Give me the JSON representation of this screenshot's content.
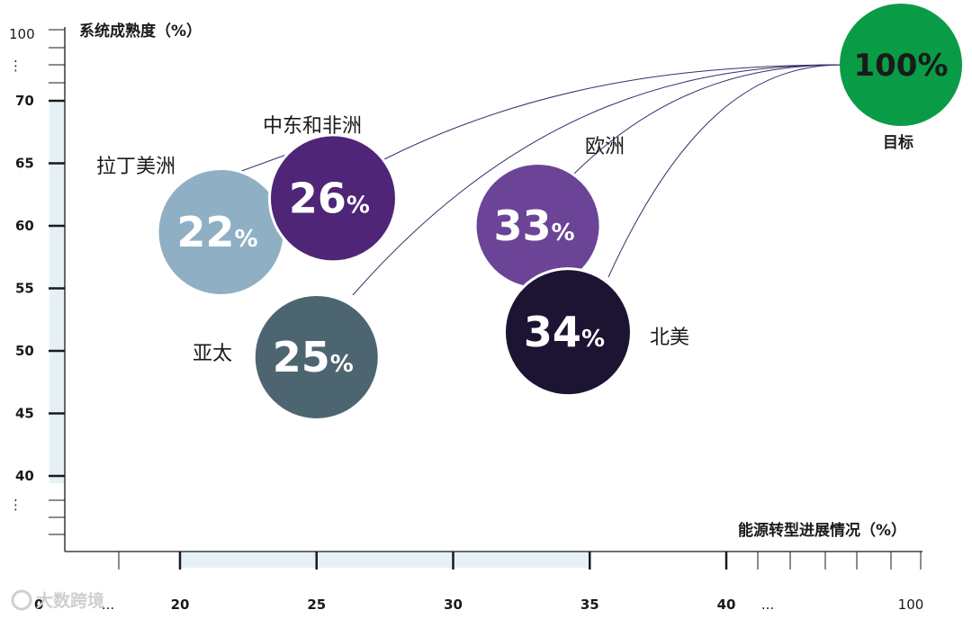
{
  "chart_data": {
    "type": "scatter",
    "title": "",
    "ylabel": "系统成熟度（%）",
    "xlabel": "能源转型进展情况（%）",
    "y_ticks": [
      "100",
      "70",
      "65",
      "60",
      "55",
      "50",
      "45",
      "40"
    ],
    "y_break_marks": [
      "⋮",
      "⋮"
    ],
    "x_ticks": [
      "0",
      "20",
      "25",
      "30",
      "35",
      "40",
      "100"
    ],
    "x_break_marks": [
      "...",
      "..."
    ],
    "points": [
      {
        "name": "拉丁美洲",
        "label": "22",
        "unit": "%",
        "x": 21.5,
        "y": 59.5,
        "color": "#8fb0c4"
      },
      {
        "name": "中东和非洲",
        "label": "26",
        "unit": "%",
        "x": 25.6,
        "y": 62.2,
        "color": "#4e2577"
      },
      {
        "name": "亚太",
        "label": "25",
        "unit": "%",
        "x": 25.0,
        "y": 49.5,
        "color": "#4d6570"
      },
      {
        "name": "欧洲",
        "label": "33",
        "unit": "%",
        "x": 33.1,
        "y": 60.0,
        "color": "#6b4497"
      },
      {
        "name": "北美",
        "label": "34",
        "unit": "%",
        "x": 34.2,
        "y": 51.5,
        "color": "#1c1432"
      }
    ],
    "target": {
      "name": "目标",
      "label": "100%",
      "x": 100,
      "y": 100,
      "color": "#0a9b46"
    },
    "highlight_band": {
      "x": [
        20,
        35
      ],
      "y": [
        40,
        70
      ],
      "color": "#e6f1f6"
    }
  },
  "watermark": "大数跨境"
}
